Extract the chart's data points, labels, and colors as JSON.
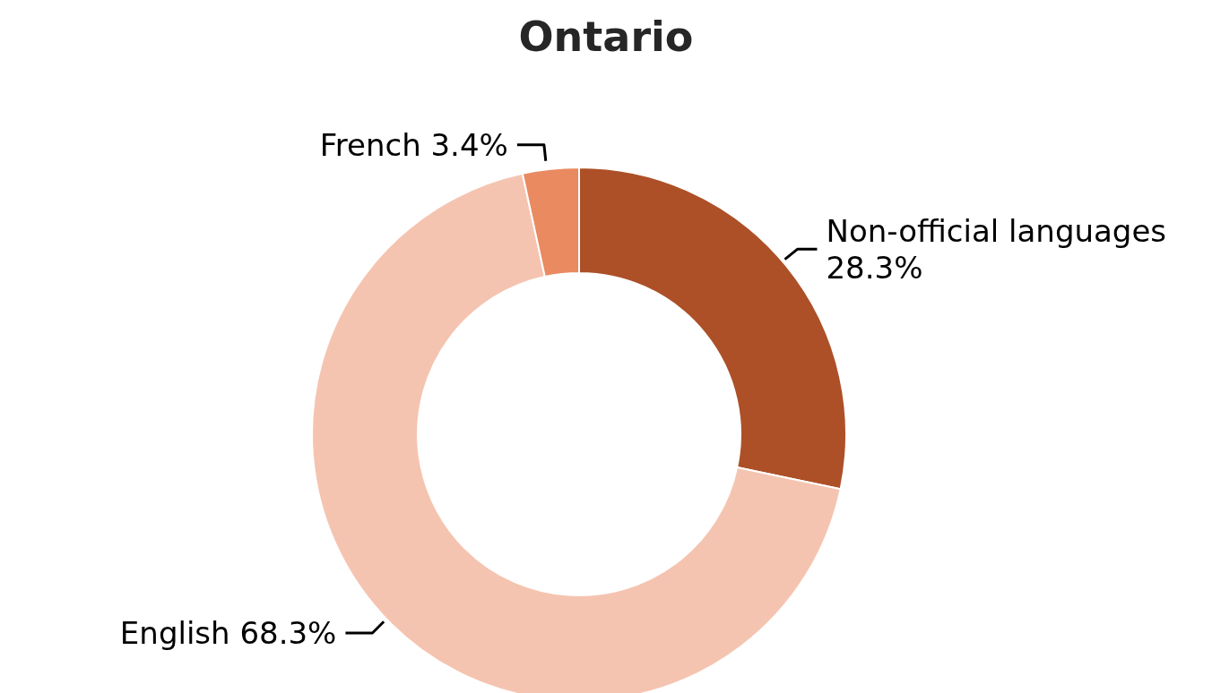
{
  "chart_data": {
    "type": "donut",
    "title": "Ontario",
    "categories": [
      "Non-official languages",
      "English",
      "French"
    ],
    "values": [
      28.3,
      68.3,
      3.4
    ],
    "value_labels": [
      "28.3%",
      "68.3%",
      "3.4%"
    ],
    "colors": [
      "#ad5027",
      "#f5c4b0",
      "#ea8a60"
    ],
    "legend": false
  }
}
